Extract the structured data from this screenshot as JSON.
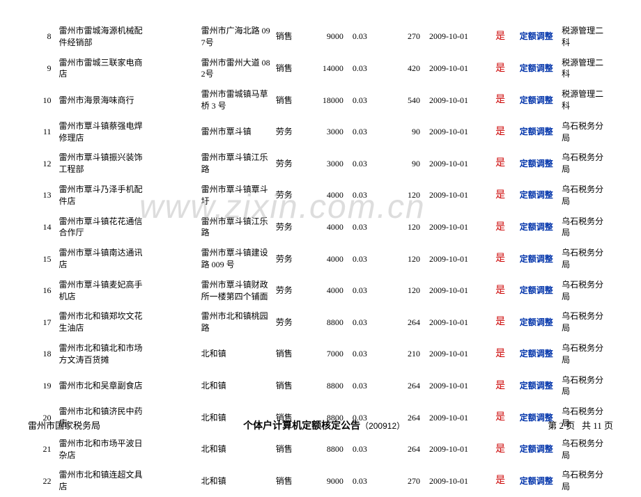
{
  "watermark": "www.zixin.com.cn",
  "footer": {
    "left": "雷州市国家税务局",
    "center_title": "个体户计算机定额核定公告",
    "center_sub": "（200912）",
    "page_label": "第 2 页",
    "total_label": "共 11 页"
  },
  "rows": [
    {
      "idx": "8",
      "name": "雷州市雷城海源机械配件经销部",
      "addr": "雷州市广海北路 097号",
      "type": "销售",
      "amt1": "9000",
      "rate": "0.03",
      "amt2": "270",
      "date": "2009-10-01",
      "flag": "是",
      "adj": "定额调整",
      "dept": "税源管理二科"
    },
    {
      "idx": "9",
      "name": "雷州市雷城三联家电商店",
      "addr": "雷州市雷州大道 082号",
      "type": "销售",
      "amt1": "14000",
      "rate": "0.03",
      "amt2": "420",
      "date": "2009-10-01",
      "flag": "是",
      "adj": "定额调整",
      "dept": "税源管理二科"
    },
    {
      "idx": "10",
      "name": "雷州市海景海味商行",
      "addr": "雷州市雷城镇马草桥 3 号",
      "type": "销售",
      "amt1": "18000",
      "rate": "0.03",
      "amt2": "540",
      "date": "2009-10-01",
      "flag": "是",
      "adj": "定额调整",
      "dept": "税源管理二科"
    },
    {
      "idx": "11",
      "name": "雷州市覃斗镇蔡强电焊修理店",
      "addr": "雷州市覃斗镇",
      "type": "劳务",
      "amt1": "3000",
      "rate": "0.03",
      "amt2": "90",
      "date": "2009-10-01",
      "flag": "是",
      "adj": "定额调整",
      "dept": "乌石税务分局"
    },
    {
      "idx": "12",
      "name": "雷州市覃斗镇振兴装饰工程部",
      "addr": "雷州市覃斗镇江乐路",
      "type": "劳务",
      "amt1": "3000",
      "rate": "0.03",
      "amt2": "90",
      "date": "2009-10-01",
      "flag": "是",
      "adj": "定额调整",
      "dept": "乌石税务分局"
    },
    {
      "idx": "13",
      "name": "雷州市覃斗乃泽手机配件店",
      "addr": "雷州市覃斗镇覃斗圩",
      "type": "劳务",
      "amt1": "4000",
      "rate": "0.03",
      "amt2": "120",
      "date": "2009-10-01",
      "flag": "是",
      "adj": "定额调整",
      "dept": "乌石税务分局"
    },
    {
      "idx": "14",
      "name": "雷州市覃斗镇花花通信合作厅",
      "addr": "雷州市覃斗镇江乐路",
      "type": "劳务",
      "amt1": "4000",
      "rate": "0.03",
      "amt2": "120",
      "date": "2009-10-01",
      "flag": "是",
      "adj": "定额调整",
      "dept": "乌石税务分局"
    },
    {
      "idx": "15",
      "name": "雷州市覃斗镇南达通讯店",
      "addr": "雷州市覃斗镇建设路 009 号",
      "type": "劳务",
      "amt1": "4000",
      "rate": "0.03",
      "amt2": "120",
      "date": "2009-10-01",
      "flag": "是",
      "adj": "定额调整",
      "dept": "乌石税务分局"
    },
    {
      "idx": "16",
      "name": "雷州市覃斗镇麦妃高手机店",
      "addr": "雷州市覃斗镇财政所一楼第四个铺面",
      "type": "劳务",
      "amt1": "4000",
      "rate": "0.03",
      "amt2": "120",
      "date": "2009-10-01",
      "flag": "是",
      "adj": "定额调整",
      "dept": "乌石税务分局"
    },
    {
      "idx": "17",
      "name": "雷州市北和镇郑坎文花生油店",
      "addr": "雷州市北和镇桃园路",
      "type": "劳务",
      "amt1": "8800",
      "rate": "0.03",
      "amt2": "264",
      "date": "2009-10-01",
      "flag": "是",
      "adj": "定额调整",
      "dept": "乌石税务分局"
    },
    {
      "idx": "18",
      "name": "雷州市北和镇北和市场方文涛百货摊",
      "addr": "北和镇",
      "type": "销售",
      "amt1": "7000",
      "rate": "0.03",
      "amt2": "210",
      "date": "2009-10-01",
      "flag": "是",
      "adj": "定额调整",
      "dept": "乌石税务分局"
    },
    {
      "idx": "19",
      "name": "雷州市北和吴章副食店",
      "addr": "北和镇",
      "type": "销售",
      "amt1": "8800",
      "rate": "0.03",
      "amt2": "264",
      "date": "2009-10-01",
      "flag": "是",
      "adj": "定额调整",
      "dept": "乌石税务分局"
    },
    {
      "idx": "20",
      "name": "雷州市北和镇济民中药店",
      "addr": "北和镇",
      "type": "销售",
      "amt1": "8800",
      "rate": "0.03",
      "amt2": "264",
      "date": "2009-10-01",
      "flag": "是",
      "adj": "定额调整",
      "dept": "乌石税务分局"
    },
    {
      "idx": "21",
      "name": "雷州市北和市场平波日杂店",
      "addr": "北和镇",
      "type": "销售",
      "amt1": "8800",
      "rate": "0.03",
      "amt2": "264",
      "date": "2009-10-01",
      "flag": "是",
      "adj": "定额调整",
      "dept": "乌石税务分局"
    },
    {
      "idx": "22",
      "name": "雷州市北和镇连超文具店",
      "addr": "北和镇",
      "type": "销售",
      "amt1": "9000",
      "rate": "0.03",
      "amt2": "270",
      "date": "2009-10-01",
      "flag": "是",
      "adj": "定额调整",
      "dept": "乌石税务分局"
    }
  ]
}
